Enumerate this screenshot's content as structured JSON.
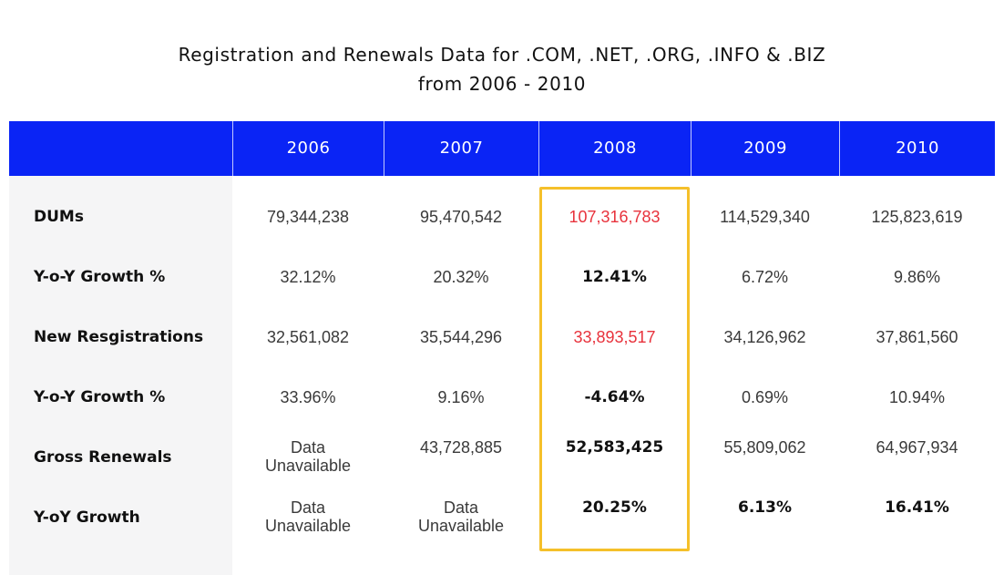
{
  "title": {
    "line1": "Registration and Renewals Data for .COM, .NET, .ORG, .INFO & .BIZ",
    "line2": "from 2006 - 2010"
  },
  "columns": [
    "2006",
    "2007",
    "2008",
    "2009",
    "2010"
  ],
  "rows": [
    {
      "label": "DUMs",
      "values": [
        "79,344,238",
        "95,470,542",
        "107,316,783",
        "114,529,340",
        "125,823,619"
      ]
    },
    {
      "label": "Y-o-Y Growth %",
      "values": [
        "32.12%",
        "20.32%",
        "12.41%",
        "6.72%",
        "9.86%"
      ]
    },
    {
      "label": "New Resgistrations",
      "values": [
        "32,561,082",
        "35,544,296",
        "33,893,517",
        "34,126,962",
        "37,861,560"
      ]
    },
    {
      "label": "Y-o-Y Growth %",
      "values": [
        "33.96%",
        "9.16%",
        "-4.64%",
        "0.69%",
        "10.94%"
      ]
    },
    {
      "label": "Gross Renewals",
      "values": [
        "Data\nUnavailable",
        "43,728,885",
        "52,583,425",
        "55,809,062",
        "64,967,934"
      ]
    },
    {
      "label": "Y-oY Growth",
      "values": [
        "Data\nUnavailable",
        "Data\nUnavailable",
        "20.25%",
        "6.13%",
        "16.41%"
      ]
    }
  ],
  "highlight_color": "#f5c02a",
  "header_color": "#0a24f5",
  "accent_red": "#e8323c"
}
